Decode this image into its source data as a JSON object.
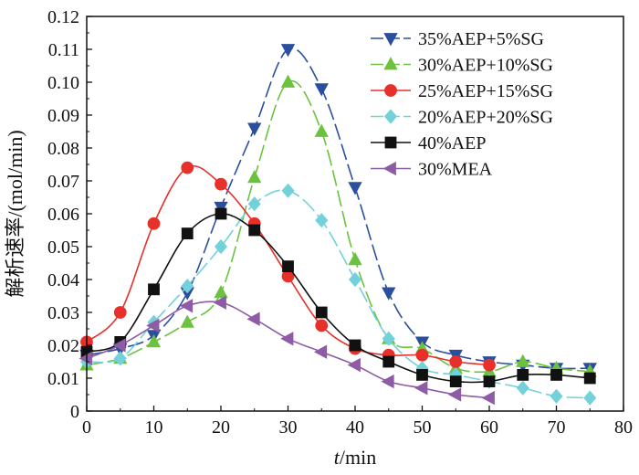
{
  "chart_data": {
    "type": "line",
    "title": "",
    "xlabel_italic": "t",
    "xlabel_unit": "/min",
    "ylabel": "解析速率/(mol/min)",
    "xlim": [
      0,
      80
    ],
    "ylim": [
      0,
      0.12
    ],
    "x_ticks": [
      "0",
      "10",
      "20",
      "30",
      "40",
      "50",
      "60",
      "70",
      "80"
    ],
    "y_ticks": [
      "0",
      "0.01",
      "0.02",
      "0.03",
      "0.04",
      "0.05",
      "0.06",
      "0.07",
      "0.08",
      "0.09",
      "0.10",
      "0.11",
      "0.12"
    ],
    "grid": false,
    "legend_position": "top-right",
    "series": [
      {
        "name": "35%AEP+5%SG",
        "color": "#2b4f9e",
        "marker": "triangle-down",
        "dash": "long",
        "x": [
          0,
          5,
          10,
          15,
          20,
          25,
          30,
          35,
          40,
          45,
          50,
          55,
          60,
          65,
          70,
          75
        ],
        "values": [
          0.017,
          0.019,
          0.023,
          0.036,
          0.062,
          0.086,
          0.11,
          0.098,
          0.068,
          0.036,
          0.021,
          0.017,
          0.015,
          0.014,
          0.013,
          0.013
        ]
      },
      {
        "name": "30%AEP+10%SG",
        "color": "#6cc23f",
        "marker": "triangle-up",
        "dash": "long",
        "x": [
          0,
          5,
          10,
          15,
          20,
          25,
          30,
          35,
          40,
          45,
          50,
          55,
          60,
          65,
          70,
          75
        ],
        "values": [
          0.014,
          0.016,
          0.021,
          0.027,
          0.036,
          0.071,
          0.1,
          0.085,
          0.046,
          0.022,
          0.019,
          0.013,
          0.012,
          0.015,
          0.013,
          0.012
        ]
      },
      {
        "name": "25%AEP+15%SG",
        "color": "#e8302a",
        "marker": "circle",
        "dash": "solid",
        "x": [
          0,
          5,
          10,
          15,
          20,
          25,
          30,
          35,
          40,
          45,
          50,
          55,
          60
        ],
        "values": [
          0.021,
          0.03,
          0.057,
          0.074,
          0.069,
          0.057,
          0.041,
          0.026,
          0.019,
          0.017,
          0.017,
          0.015,
          0.014
        ]
      },
      {
        "name": "20%AEP+20%SG",
        "color": "#73d1da",
        "marker": "diamond",
        "dash": "long",
        "x": [
          0,
          5,
          10,
          15,
          20,
          25,
          30,
          35,
          40,
          45,
          50,
          55,
          60,
          65,
          70,
          75
        ],
        "values": [
          0.015,
          0.016,
          0.027,
          0.038,
          0.05,
          0.063,
          0.067,
          0.058,
          0.04,
          0.022,
          0.013,
          0.011,
          0.009,
          0.007,
          0.0045,
          0.004
        ]
      },
      {
        "name": "40%AEP",
        "color": "#111111",
        "marker": "square",
        "dash": "solid",
        "x": [
          0,
          5,
          10,
          15,
          20,
          25,
          30,
          35,
          40,
          45,
          50,
          55,
          60,
          65,
          70,
          75
        ],
        "values": [
          0.018,
          0.021,
          0.037,
          0.054,
          0.06,
          0.055,
          0.044,
          0.03,
          0.02,
          0.015,
          0.011,
          0.009,
          0.009,
          0.011,
          0.011,
          0.01
        ]
      },
      {
        "name": "30%MEA",
        "color": "#8e5ba6",
        "marker": "triangle-left",
        "dash": "solid",
        "x": [
          0,
          5,
          10,
          15,
          20,
          25,
          30,
          35,
          40,
          45,
          50,
          55,
          60
        ],
        "values": [
          0.016,
          0.02,
          0.026,
          0.032,
          0.033,
          0.028,
          0.022,
          0.018,
          0.014,
          0.009,
          0.007,
          0.005,
          0.004
        ]
      }
    ]
  }
}
